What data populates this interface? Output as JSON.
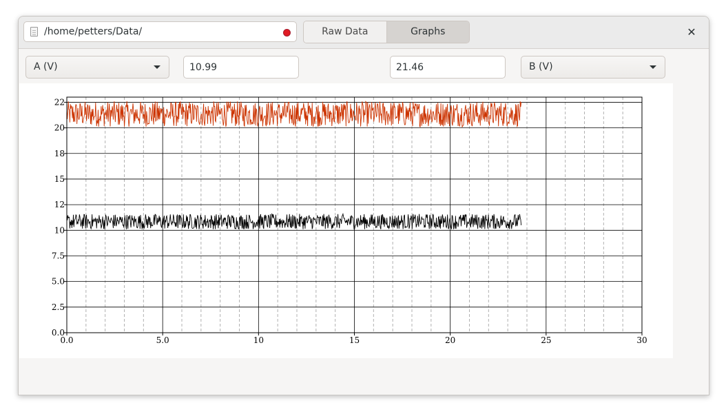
{
  "header": {
    "path": "/home/petters/Data/",
    "tabs": [
      {
        "label": "Raw Data",
        "active": false
      },
      {
        "label": "Graphs",
        "active": true
      }
    ],
    "close_label": "✕",
    "recording_color": "#e01b24"
  },
  "controls": {
    "left_select": "A (V)",
    "left_value": "10.99",
    "right_value": "21.46",
    "right_select": "B (V)"
  },
  "chart_data": {
    "type": "line",
    "x_range": [
      0,
      30
    ],
    "y_range": [
      0,
      23
    ],
    "x_ticks": [
      {
        "v": 0,
        "label": "0.0"
      },
      {
        "v": 5,
        "label": "5.0"
      },
      {
        "v": 10,
        "label": "10"
      },
      {
        "v": 15,
        "label": "15"
      },
      {
        "v": 20,
        "label": "20"
      },
      {
        "v": 25,
        "label": "25"
      },
      {
        "v": 30,
        "label": "30"
      }
    ],
    "y_ticks": [
      {
        "v": 0,
        "label": "0.0"
      },
      {
        "v": 2.5,
        "label": "2.5"
      },
      {
        "v": 5,
        "label": "5.0"
      },
      {
        "v": 7.5,
        "label": "7.5"
      },
      {
        "v": 10,
        "label": "10"
      },
      {
        "v": 12.5,
        "label": "12"
      },
      {
        "v": 15,
        "label": "15"
      },
      {
        "v": 17.5,
        "label": "18"
      },
      {
        "v": 20,
        "label": "20"
      },
      {
        "v": 22.5,
        "label": "22"
      }
    ],
    "grid": "major solid, minor dashed every 1 unit on x",
    "series": [
      {
        "color": "#cc3300",
        "x_end": 23.7,
        "y_min": 20.1,
        "y_max": 22.6
      },
      {
        "color": "#000000",
        "x_end": 23.7,
        "y_min": 10.1,
        "y_max": 11.6
      }
    ]
  }
}
